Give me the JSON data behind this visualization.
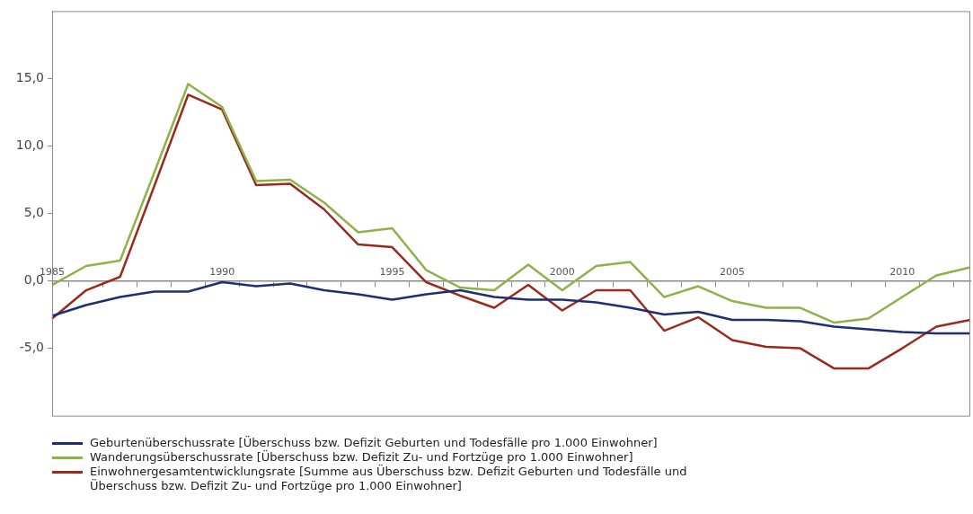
{
  "chart_data": {
    "type": "line",
    "categories": [
      "1985",
      null,
      null,
      null,
      null,
      "1990",
      null,
      null,
      null,
      null,
      "1995",
      null,
      null,
      null,
      null,
      "2000",
      null,
      null,
      null,
      null,
      "2005",
      null,
      null,
      null,
      null,
      "2010",
      null,
      null
    ],
    "series": [
      {
        "name": "Geburtenüberschussrate [Überschuss bzw. Defizit Geburten und Todesfälle pro 1.000 Einwohner]",
        "color": "#1c2f72",
        "values": [
          -2.6,
          -1.8,
          -1.2,
          -0.8,
          -0.8,
          -0.1,
          -0.4,
          -0.2,
          -0.7,
          -1.0,
          -1.4,
          -1.0,
          -0.7,
          -1.2,
          -1.4,
          -1.4,
          -1.6,
          -2.0,
          -2.5,
          -2.3,
          -2.9,
          -2.9,
          -3.0,
          -3.4,
          -3.6,
          -3.8,
          -3.9,
          -3.9
        ]
      },
      {
        "name": "Wanderungsüberschussrate [Überschuss bzw. Defizit Zu- und Fortzüge pro 1.000 Einwohner]",
        "color": "#8db246",
        "values": [
          -0.3,
          1.1,
          1.5,
          8.0,
          14.6,
          12.9,
          7.4,
          7.5,
          5.8,
          3.6,
          3.9,
          0.8,
          -0.5,
          -0.7,
          1.2,
          -0.7,
          1.1,
          1.4,
          -1.2,
          -0.4,
          -1.5,
          -2.0,
          -2.0,
          -3.1,
          -2.8,
          -1.2,
          0.4,
          1.0
        ]
      },
      {
        "name": "Einwohnergesamtentwicklungsrate [Summe aus Überschuss bzw. Defizit Geburten und Todesfälle und Überschuss bzw. Defizit Zu- und Fortzüge pro 1.000 Einwohner]",
        "color": "#9b2a1e",
        "values": [
          -2.8,
          -0.7,
          0.3,
          7.0,
          13.8,
          12.7,
          7.1,
          7.2,
          5.3,
          2.7,
          2.5,
          -0.1,
          -1.1,
          -2.0,
          -0.3,
          -2.2,
          -0.7,
          -0.7,
          -3.7,
          -2.7,
          -4.4,
          -4.9,
          -5.0,
          -6.5,
          -6.5,
          -5.0,
          -3.4,
          -2.9
        ]
      }
    ],
    "ylim": [
      -10,
      20
    ],
    "yticks": [
      {
        "value": -5,
        "label": "-5,0"
      },
      {
        "value": 0,
        "label": "0,0"
      },
      {
        "value": 5,
        "label": "5,0"
      },
      {
        "value": 10,
        "label": "10,0"
      },
      {
        "value": 15,
        "label": "15,0"
      }
    ],
    "grid": false,
    "legend": "bottom",
    "marker": "none",
    "line_style": "solid"
  }
}
